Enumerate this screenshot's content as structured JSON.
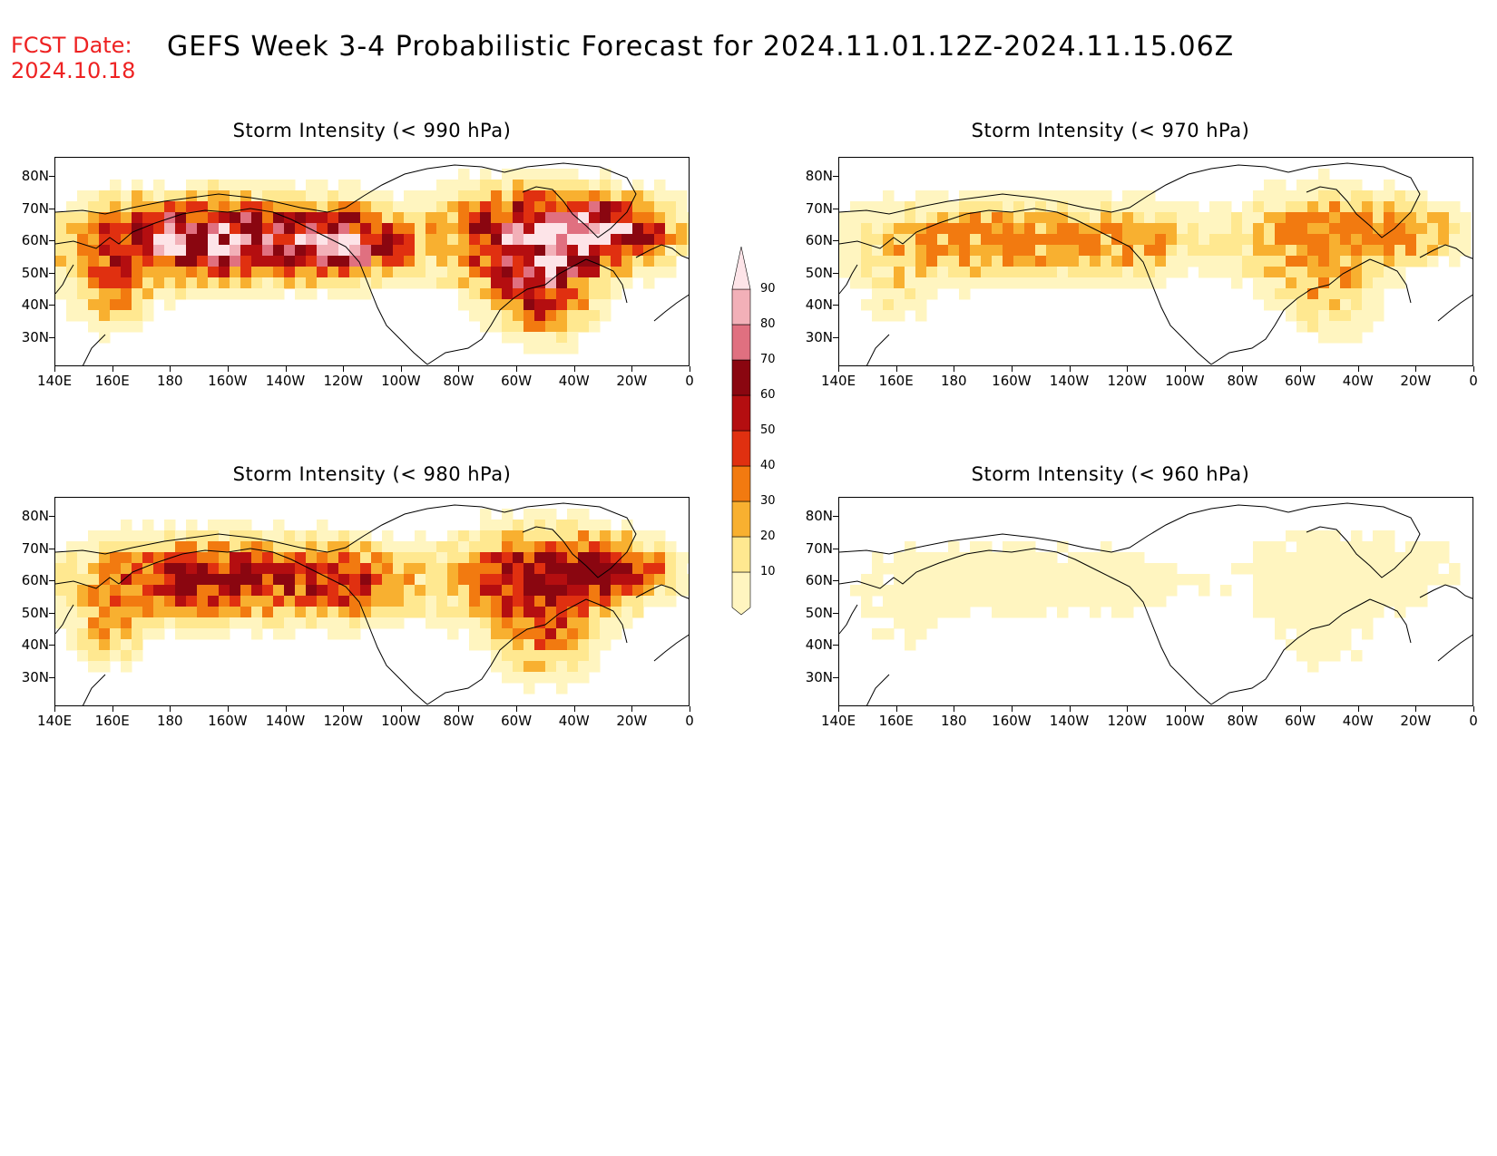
{
  "header": {
    "fcst_label": "FCST Date:",
    "fcst_date": "2024.10.18",
    "title": "GEFS Week 3-4 Probabilistic Forecast for 2024.11.01.12Z-2024.11.15.06Z"
  },
  "axes": {
    "lat_labels": [
      "80N",
      "70N",
      "60N",
      "50N",
      "40N",
      "30N"
    ],
    "lon_labels": [
      "140E",
      "160E",
      "180",
      "160W",
      "140W",
      "120W",
      "100W",
      "80W",
      "60W",
      "40W",
      "20W",
      "0"
    ]
  },
  "panels": [
    {
      "id": "p990",
      "title": "Storm Intensity (< 990 hPa)",
      "intensity": 4
    },
    {
      "id": "p970",
      "title": "Storm Intensity (< 970 hPa)",
      "intensity": 2
    },
    {
      "id": "p980",
      "title": "Storm Intensity (< 980 hPa)",
      "intensity": 3
    },
    {
      "id": "p960",
      "title": "Storm Intensity (< 960 hPa)",
      "intensity": 1
    }
  ],
  "colorbar": {
    "levels": [
      "10",
      "20",
      "30",
      "40",
      "50",
      "60",
      "70",
      "80",
      "90"
    ],
    "colors": [
      "#fff5c0",
      "#ffe890",
      "#f8b030",
      "#f27a10",
      "#e03010",
      "#b40e10",
      "#8a0610",
      "#e07080",
      "#f2b0b8",
      "#fde4e8"
    ]
  }
}
